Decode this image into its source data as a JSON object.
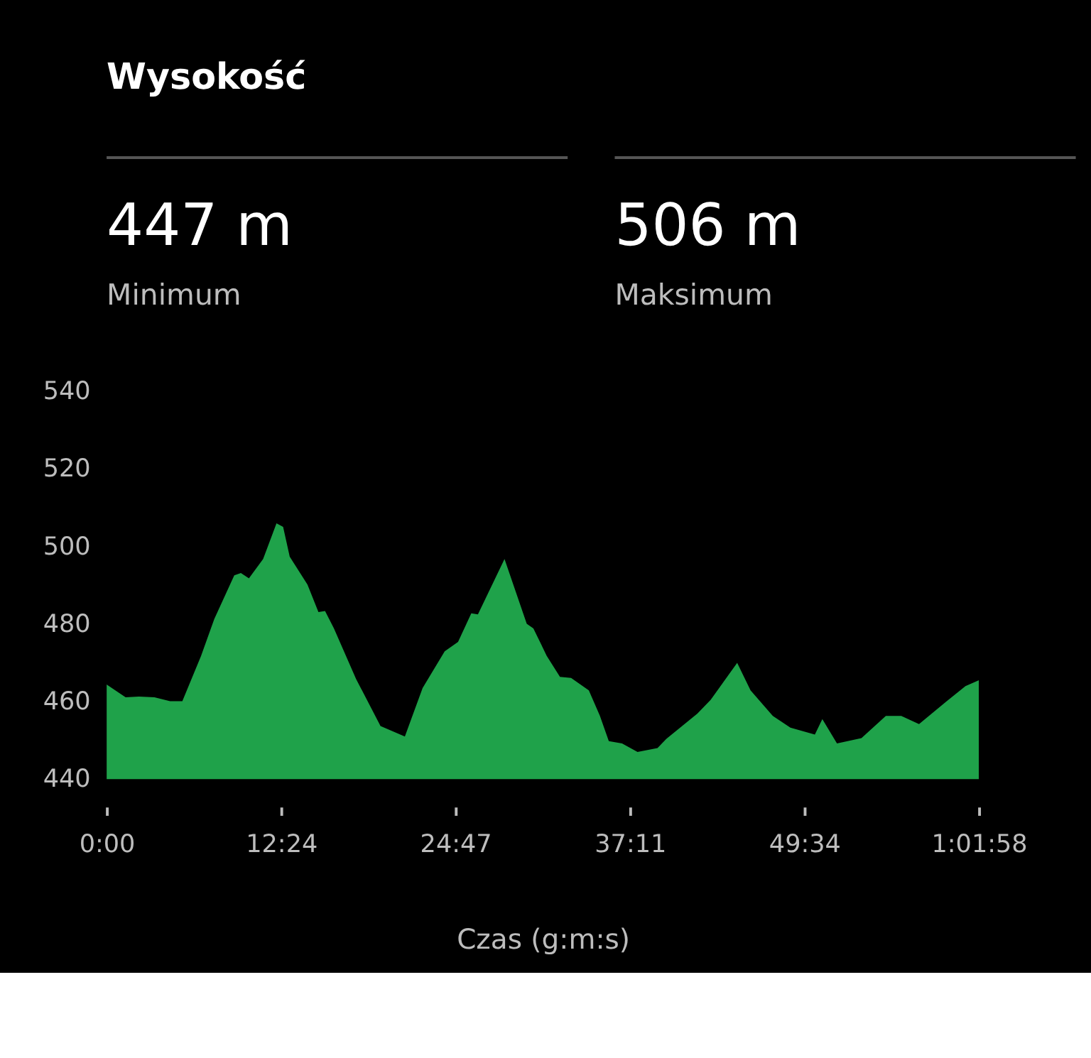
{
  "chart_data": {
    "type": "area",
    "title": "Wysokość",
    "xlabel": "Czas (g:m:s)",
    "annotations": [
      "447 m",
      "Minimum",
      "506 m",
      "Maksimum"
    ],
    "x": [
      0,
      1.35,
      2.3,
      3.4,
      4.51,
      5.38,
      6.71,
      7.65,
      9.07,
      9.54,
      10.11,
      11.12,
      12.07,
      12.54,
      13.01,
      14.27,
      15.05,
      15.52,
      16.15,
      17.73,
      19.46,
      21.19,
      22.45,
      24.02,
      24.97,
      25.91,
      26.38,
      28.27,
      29.85,
      30.32,
      31.27,
      32.21,
      33.0,
      34.26,
      35.05,
      35.68,
      36.62,
      37.72,
      39.14,
      39.77,
      41.97,
      42.92,
      44.8,
      45.75,
      47.33,
      48.58,
      50.32,
      50.85,
      51.89,
      53.63,
      55.36,
      56.46,
      57.72,
      59.61,
      61.02,
      61.97
    ],
    "values": [
      464.4,
      461.1,
      461.3,
      461.1,
      460.1,
      460.1,
      471.8,
      481.3,
      492.6,
      493.2,
      491.8,
      496.8,
      506,
      505.1,
      497.4,
      490.2,
      483.1,
      483.4,
      478.9,
      465.8,
      453.7,
      451.0,
      463.5,
      473.0,
      475.4,
      482.8,
      482.5,
      496.8,
      480.1,
      478.9,
      471.8,
      466.4,
      466.1,
      462.9,
      456.3,
      449.8,
      449.2,
      447,
      448.0,
      450.4,
      456.9,
      460.5,
      470.0,
      462.9,
      456.3,
      453.3,
      451.5,
      455.5,
      449.2,
      450.6,
      456.3,
      456.3,
      454.2,
      459.9,
      464.0,
      465.5
    ],
    "color": "#1fa24a",
    "xlim": [
      0,
      61.97
    ],
    "ylim": [
      440,
      540
    ],
    "xticks": [
      {
        "value": 0,
        "label": "0:00"
      },
      {
        "value": 12.4,
        "label": "12:24"
      },
      {
        "value": 24.78,
        "label": "24:47"
      },
      {
        "value": 37.18,
        "label": "37:11"
      },
      {
        "value": 49.57,
        "label": "49:34"
      },
      {
        "value": 61.97,
        "label": "1:01:58"
      }
    ],
    "yticks": [
      440,
      460,
      480,
      500,
      520,
      540
    ],
    "grid": false
  }
}
